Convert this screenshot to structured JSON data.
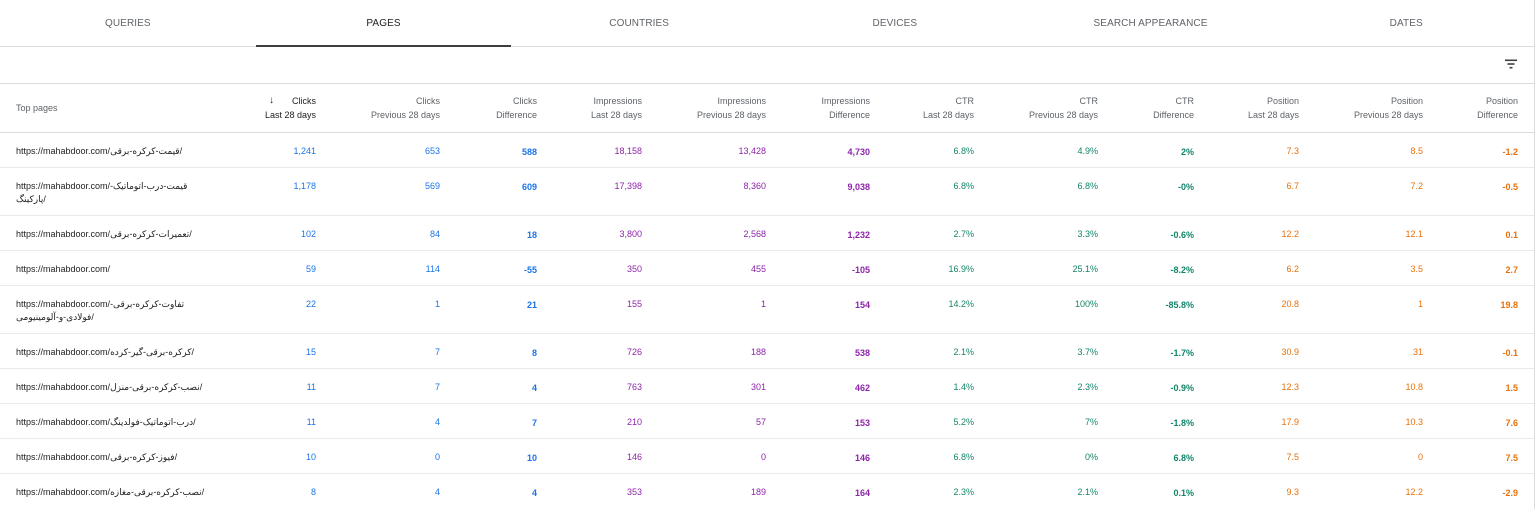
{
  "tabs": [
    {
      "label": "QUERIES",
      "active": false
    },
    {
      "label": "PAGES",
      "active": true
    },
    {
      "label": "COUNTRIES",
      "active": false
    },
    {
      "label": "DEVICES",
      "active": false
    },
    {
      "label": "SEARCH APPEARANCE",
      "active": false
    },
    {
      "label": "DATES",
      "active": false
    }
  ],
  "toolbar": {
    "filter_icon": "filter-icon"
  },
  "colors": {
    "clicks": "#1a73e8",
    "impressions": "#8e24aa",
    "ctr": "#12856b",
    "position": "#e8710a"
  },
  "table": {
    "sorted_column": "Clicks Last 28 days",
    "sort_direction": "descending",
    "headers": [
      {
        "line1": "Top pages",
        "line2": ""
      },
      {
        "line1": "Clicks",
        "line2": "Last 28 days"
      },
      {
        "line1": "Clicks",
        "line2": "Previous 28 days"
      },
      {
        "line1": "Clicks",
        "line2": "Difference"
      },
      {
        "line1": "Impressions",
        "line2": "Last 28 days"
      },
      {
        "line1": "Impressions",
        "line2": "Previous 28 days"
      },
      {
        "line1": "Impressions",
        "line2": "Difference"
      },
      {
        "line1": "CTR",
        "line2": "Last 28 days"
      },
      {
        "line1": "CTR",
        "line2": "Previous 28 days"
      },
      {
        "line1": "CTR",
        "line2": "Difference"
      },
      {
        "line1": "Position",
        "line2": "Last 28 days"
      },
      {
        "line1": "Position",
        "line2": "Previous 28 days"
      },
      {
        "line1": "Position",
        "line2": "Difference"
      }
    ],
    "rows": [
      {
        "page": "https://mahabdoor.com/قیمت-کرکره-برقی/",
        "cells": [
          "1,241",
          "653",
          "588",
          "18,158",
          "13,428",
          "4,730",
          "6.8%",
          "4.9%",
          "2%",
          "7.3",
          "8.5",
          "-1.2"
        ]
      },
      {
        "page": "https://mahabdoor.com/قیمت-درب-اتوماتیک-پارکینگ/",
        "cells": [
          "1,178",
          "569",
          "609",
          "17,398",
          "8,360",
          "9,038",
          "6.8%",
          "6.8%",
          "-0%",
          "6.7",
          "7.2",
          "-0.5"
        ]
      },
      {
        "page": "https://mahabdoor.com/تعمیرات-کرکره-برقی/",
        "cells": [
          "102",
          "84",
          "18",
          "3,800",
          "2,568",
          "1,232",
          "2.7%",
          "3.3%",
          "-0.6%",
          "12.2",
          "12.1",
          "0.1"
        ]
      },
      {
        "page": "https://mahabdoor.com/",
        "cells": [
          "59",
          "114",
          "-55",
          "350",
          "455",
          "-105",
          "16.9%",
          "25.1%",
          "-8.2%",
          "6.2",
          "3.5",
          "2.7"
        ]
      },
      {
        "page": "https://mahabdoor.com/تفاوت-کرکره-برقی-فولادی-و-آلومینیومی/",
        "cells": [
          "22",
          "1",
          "21",
          "155",
          "1",
          "154",
          "14.2%",
          "100%",
          "-85.8%",
          "20.8",
          "1",
          "19.8"
        ]
      },
      {
        "page": "https://mahabdoor.com/کرکره-برقی-گیر-کرده/",
        "cells": [
          "15",
          "7",
          "8",
          "726",
          "188",
          "538",
          "2.1%",
          "3.7%",
          "-1.7%",
          "30.9",
          "31",
          "-0.1"
        ]
      },
      {
        "page": "https://mahabdoor.com/نصب-کرکره-برقی-منزل/",
        "cells": [
          "11",
          "7",
          "4",
          "763",
          "301",
          "462",
          "1.4%",
          "2.3%",
          "-0.9%",
          "12.3",
          "10.8",
          "1.5"
        ]
      },
      {
        "page": "https://mahabdoor.com/درب-اتوماتیک-فولدینگ/",
        "cells": [
          "11",
          "4",
          "7",
          "210",
          "57",
          "153",
          "5.2%",
          "7%",
          "-1.8%",
          "17.9",
          "10.3",
          "7.6"
        ]
      },
      {
        "page": "https://mahabdoor.com/فیوز-کرکره-برقی/",
        "cells": [
          "10",
          "0",
          "10",
          "146",
          "0",
          "146",
          "6.8%",
          "0%",
          "6.8%",
          "7.5",
          "0",
          "7.5"
        ]
      },
      {
        "page": "https://mahabdoor.com/نصب-کرکره-برقی-مغازه/",
        "cells": [
          "8",
          "4",
          "4",
          "353",
          "189",
          "164",
          "2.3%",
          "2.1%",
          "0.1%",
          "9.3",
          "12.2",
          "-2.9"
        ]
      }
    ]
  }
}
